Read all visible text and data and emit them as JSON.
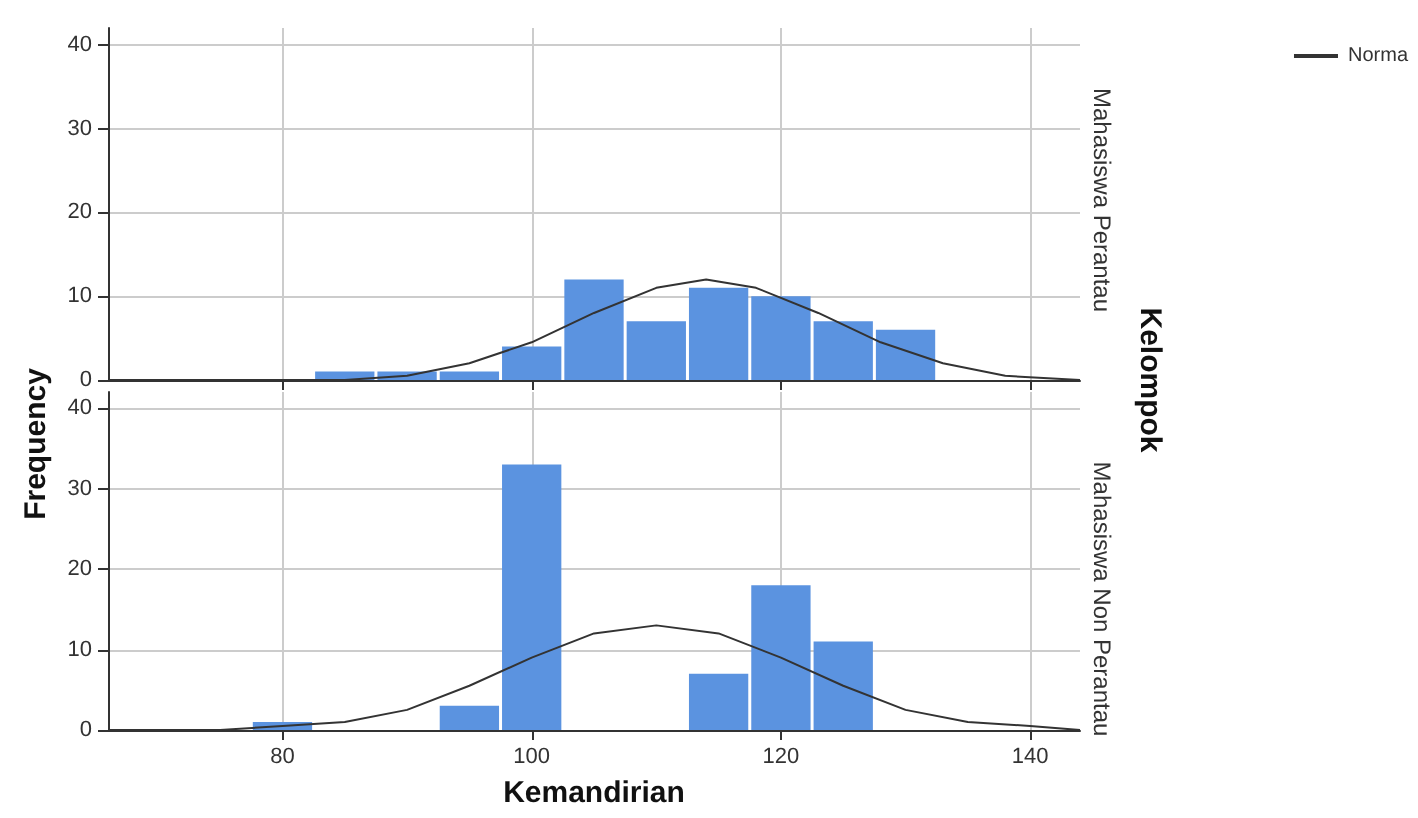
{
  "chart_data": [
    {
      "type": "histogram",
      "ylabel": "Frequency",
      "y2label": "Kelompok",
      "annotations": [
        "Mahasiswa Perantau"
      ],
      "bins": [
        82.5,
        87.5,
        92.5,
        97.5,
        102.5,
        107.5,
        112.5,
        117.5,
        122.5,
        127.5,
        132.5
      ],
      "values": [
        1,
        1,
        1,
        4,
        12,
        7,
        11,
        10,
        7,
        6
      ],
      "color": "#5b93e0",
      "xlim": [
        66,
        144
      ],
      "xticks": [
        80,
        100,
        120,
        140
      ],
      "ylim": [
        0,
        42
      ],
      "yticks": [
        0,
        10,
        20,
        30,
        40
      ],
      "grid": true,
      "tick_labels": "y",
      "legend": "top right",
      "series": [
        {
          "type": "line",
          "name": "Norma",
          "color": "#333333",
          "x": [
            66,
            70,
            75,
            80,
            85,
            90,
            95,
            100,
            105,
            110,
            114,
            118,
            123,
            128,
            133,
            138,
            144
          ],
          "values": [
            0,
            0,
            0,
            0,
            0,
            0.5,
            2,
            4.5,
            8,
            11,
            12,
            11,
            8,
            4.5,
            2,
            0.5,
            0
          ]
        }
      ]
    },
    {
      "type": "histogram",
      "xlabel": "Kemandirian",
      "annotations": [
        "Mahasiswa Non Perantau"
      ],
      "bins": [
        77.5,
        82.5,
        87.5,
        92.5,
        97.5,
        102.5,
        107.5,
        112.5,
        117.5,
        122.5,
        127.5
      ],
      "values": [
        1,
        0,
        0,
        3,
        33,
        0,
        0,
        7,
        18,
        11
      ],
      "color": "#5b93e0",
      "xlim": [
        66,
        144
      ],
      "xticks": [
        80,
        100,
        120,
        140
      ],
      "ylim": [
        0,
        42
      ],
      "yticks": [
        0,
        10,
        20,
        30,
        40
      ],
      "grid": true,
      "series": [
        {
          "type": "line",
          "color": "#333333",
          "x": [
            66,
            70,
            75,
            80,
            85,
            90,
            95,
            100,
            105,
            110,
            115,
            120,
            125,
            130,
            135,
            140,
            144
          ],
          "values": [
            0,
            0,
            0,
            0.5,
            1,
            2.5,
            5.5,
            9,
            12,
            13,
            12,
            9,
            5.5,
            2.5,
            1,
            0.5,
            0
          ]
        }
      ]
    }
  ]
}
